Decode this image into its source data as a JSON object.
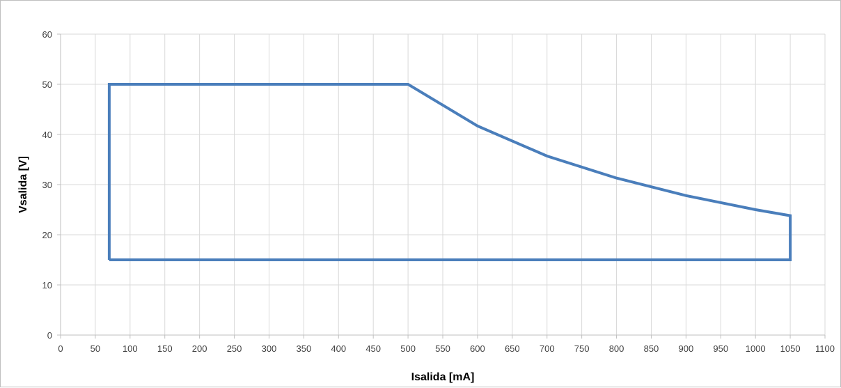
{
  "chart_data": {
    "type": "line",
    "title": "",
    "xlabel": "Isalida [mA]",
    "ylabel": "Vsalida [V]",
    "xlim": [
      0,
      1100
    ],
    "ylim": [
      0,
      60
    ],
    "x_ticks": [
      0,
      50,
      100,
      150,
      200,
      250,
      300,
      350,
      400,
      450,
      500,
      550,
      600,
      650,
      700,
      750,
      800,
      850,
      900,
      950,
      1000,
      1050,
      1100
    ],
    "y_ticks": [
      0,
      10,
      20,
      30,
      40,
      50,
      60
    ],
    "grid": true,
    "legend": "none",
    "series": [
      {
        "color": "#4a7ebb",
        "points": [
          {
            "x": 70,
            "y": 15
          },
          {
            "x": 70,
            "y": 50
          },
          {
            "x": 500,
            "y": 50
          },
          {
            "x": 600,
            "y": 41.7
          },
          {
            "x": 700,
            "y": 35.7
          },
          {
            "x": 800,
            "y": 31.3
          },
          {
            "x": 900,
            "y": 27.8
          },
          {
            "x": 1000,
            "y": 25
          },
          {
            "x": 1050,
            "y": 23.8
          },
          {
            "x": 1050,
            "y": 15
          },
          {
            "x": 70,
            "y": 15
          }
        ]
      }
    ]
  }
}
